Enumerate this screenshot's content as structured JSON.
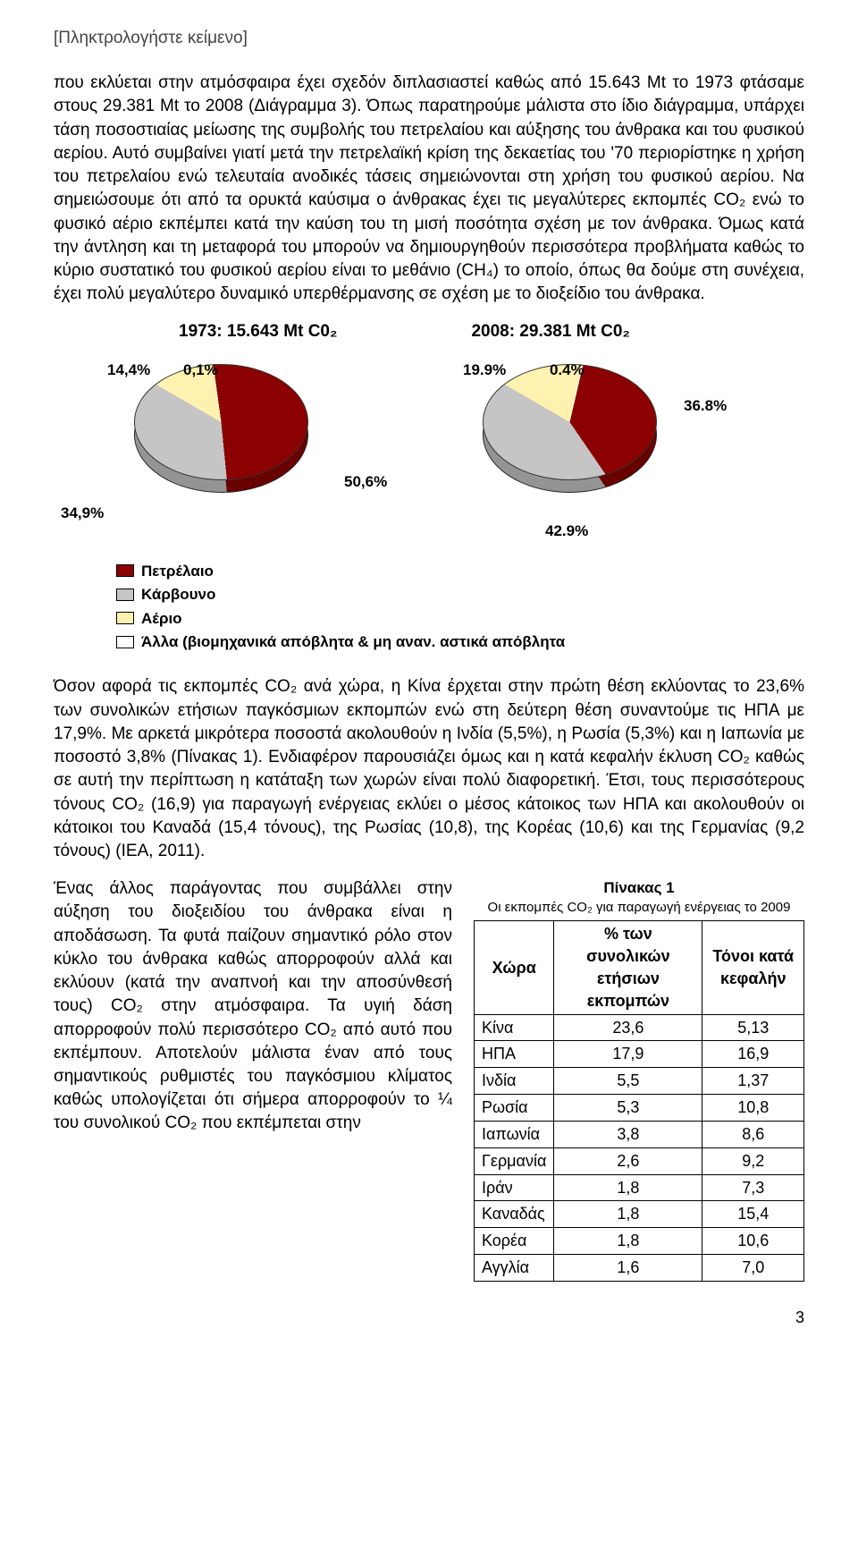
{
  "placeholder": "[Πληκτρολογήστε κείμενο]",
  "paragraph1": "που εκλύεται στην ατμόσφαιρα έχει σχεδόν διπλασιαστεί καθώς από 15.643 Mt το 1973 φτάσαμε στους 29.381 Mt το 2008 (Διάγραμμα 3). Όπως παρατηρούμε μάλιστα στο ίδιο διάγραμμα, υπάρχει τάση ποσοστιαίας μείωσης της συμβολής του πετρελαίου και αύξησης του άνθρακα και του φυσικού αερίου. Αυτό συμβαίνει γιατί μετά την πετρελαϊκή κρίση της δεκαετίας του '70 περιορίστηκε η χρήση του πετρελαίου ενώ τελευταία ανοδικές τάσεις σημειώνονται στη χρήση του φυσικού αερίου. Να σημειώσουμε ότι από τα ορυκτά καύσιμα ο άνθρακας έχει τις μεγαλύτερες εκπομπές CO₂ ενώ το φυσικό αέριο εκπέμπει κατά την καύση του τη μισή ποσότητα σχέση με τον άνθρακα. Όμως κατά την άντληση και τη μεταφορά του μπορούν να δημιουργηθούν περισσότερα προβλήματα καθώς το κύριο συστατικό του φυσικού αερίου είναι το μεθάνιο (CH₄) το οποίο, όπως θα δούμε στη συνέχεια, έχει πολύ μεγαλύτερο δυναμικό υπερθέρμανσης σε σχέση με το διοξείδιο του άνθρακα.",
  "chart1": {
    "title": "1973: 15.643 Mt C0₂",
    "colors": {
      "oil": "#8b0000",
      "coal": "#c5c5c5",
      "gas": "#fff2b0",
      "other": "#ffffff"
    },
    "labels": {
      "gas": "14,4%",
      "other": "0,1%",
      "oil": "50,6%",
      "coal": "34,9%"
    },
    "values": {
      "oil": 50.6,
      "coal": 34.9,
      "gas": 14.4,
      "other": 0.1
    }
  },
  "chart2": {
    "title": "2008: 29.381 Mt C0₂",
    "colors": {
      "oil": "#8b0000",
      "coal": "#c5c5c5",
      "gas": "#fff2b0",
      "other": "#ffffff"
    },
    "labels": {
      "gas": "19.9%",
      "other": "0.4%",
      "oil": "36.8%",
      "coal": "42.9%"
    },
    "values": {
      "oil": 36.8,
      "coal": 42.9,
      "gas": 19.9,
      "other": 0.4
    }
  },
  "legend": {
    "items": [
      {
        "label": "Πετρέλαιο",
        "color": "#8b0000"
      },
      {
        "label": "Κάρβουνο",
        "color": "#c5c5c5"
      },
      {
        "label": "Αέριο",
        "color": "#fff2b0"
      },
      {
        "label": "Άλλα (βιομηχανικά απόβλητα & μη αναν. αστικά απόβλητα",
        "color": "#ffffff"
      }
    ]
  },
  "paragraph2": "Όσον αφορά τις εκπομπές CO₂ ανά χώρα, η Κίνα έρχεται στην πρώτη θέση εκλύοντας το 23,6% των συνολικών ετήσιων παγκόσμιων εκπομπών ενώ στη δεύτερη θέση συναντούμε τις ΗΠΑ με 17,9%. Με αρκετά μικρότερα ποσοστά ακολουθούν η Ινδία (5,5%), η Ρωσία (5,3%) και η Ιαπωνία με ποσοστό 3,8% (Πίνακας 1). Ενδιαφέρον παρουσιάζει όμως και η κατά κεφαλήν έκλυση CO₂ καθώς σε αυτή την περίπτωση η κατάταξη των χωρών είναι πολύ διαφορετική. Έτσι, τους περισσότερους τόνους CO₂ (16,9) για παραγωγή ενέργειας εκλύει ο μέσος κάτοικος των ΗΠΑ και ακολουθούν οι κάτοικοι του Καναδά (15,4 τόνους), της Ρωσίας (10,8), της Κορέας (10,6) και της Γερμανίας (9,2 τόνους) (IEA, 2011).",
  "paragraph3": "Ένας άλλος παράγοντας που συμβάλλει στην αύξηση του διοξειδίου του άνθρακα είναι η αποδάσωση. Τα φυτά παίζουν σημαντικό ρόλο στον κύκλο του άνθρακα καθώς απορροφούν αλλά και εκλύουν (κατά την αναπνοή και την αποσύνθεσή τους) CO₂ στην ατμόσφαιρα. Τα υγιή δάση απορροφούν πολύ περισσότερο CO₂ από αυτό που εκπέμπουν. Αποτελούν μάλιστα έναν από τους σημαντικούς ρυθμιστές του παγκόσμιου κλίματος καθώς υπολογίζεται ότι σήμερα απορροφούν το ¼ του συνολικού CO₂ που εκπέμπεται στην",
  "table": {
    "title": "Πίνακας 1",
    "subtitle": "Οι εκπομπές CO₂ για παραγωγή ενέργειας το 2009",
    "headers": [
      "Χώρα",
      "% των συνολικών ετήσιων εκπομπών",
      "Τόνοι κατά κεφαλήν"
    ],
    "rows": [
      [
        "Κίνα",
        "23,6",
        "5,13"
      ],
      [
        "ΗΠΑ",
        "17,9",
        "16,9"
      ],
      [
        "Ινδία",
        "5,5",
        "1,37"
      ],
      [
        "Ρωσία",
        "5,3",
        "10,8"
      ],
      [
        "Ιαπωνία",
        "3,8",
        "8,6"
      ],
      [
        "Γερμανία",
        "2,6",
        "9,2"
      ],
      [
        "Ιράν",
        "1,8",
        "7,3"
      ],
      [
        "Καναδάς",
        "1,8",
        "15,4"
      ],
      [
        "Κορέα",
        "1,8",
        "10,6"
      ],
      [
        "Αγγλία",
        "1,6",
        "7,0"
      ]
    ]
  },
  "page_number": "3"
}
